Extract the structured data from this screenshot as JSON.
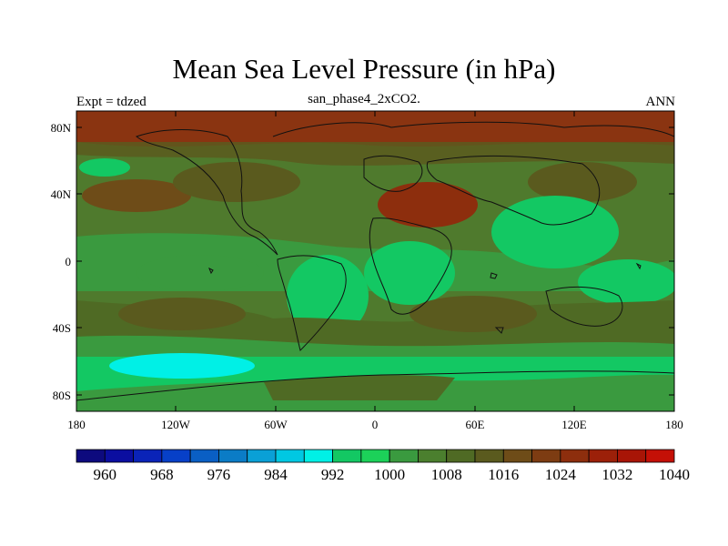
{
  "title": "Mean Sea Level Pressure (in hPa)",
  "left_string": "Expt = tdzed",
  "center_string": "san_phase4_2xCO2.",
  "right_string": "ANN",
  "lat_labels": [
    "80N",
    "40N",
    "0",
    "40S",
    "80S"
  ],
  "lon_labels": [
    "180",
    "120W",
    "60W",
    "0",
    "60E",
    "120E",
    "180"
  ],
  "colorbar": {
    "levels": [
      956,
      960,
      964,
      968,
      972,
      976,
      980,
      984,
      988,
      992,
      996,
      1000,
      1004,
      1008,
      1012,
      1016,
      1020,
      1024,
      1028,
      1032,
      1036,
      1040,
      1044
    ],
    "colors": [
      "#0d0a7e",
      "#0b0ea0",
      "#0a23b8",
      "#0740c8",
      "#0a5fc4",
      "#0b7cc6",
      "#0aa0d6",
      "#00c8e2",
      "#00f0e6",
      "#13c863",
      "#1cd159",
      "#3a9a3f",
      "#4b7f2e",
      "#4f6a24",
      "#5a5a1e",
      "#6e4c18",
      "#7d3c12",
      "#8d2e0d",
      "#9c2009",
      "#a81506",
      "#c41006"
    ],
    "labels": [
      "960",
      "968",
      "976",
      "984",
      "992",
      "1000",
      "1008",
      "1016",
      "1024",
      "1032",
      "1040"
    ]
  }
}
